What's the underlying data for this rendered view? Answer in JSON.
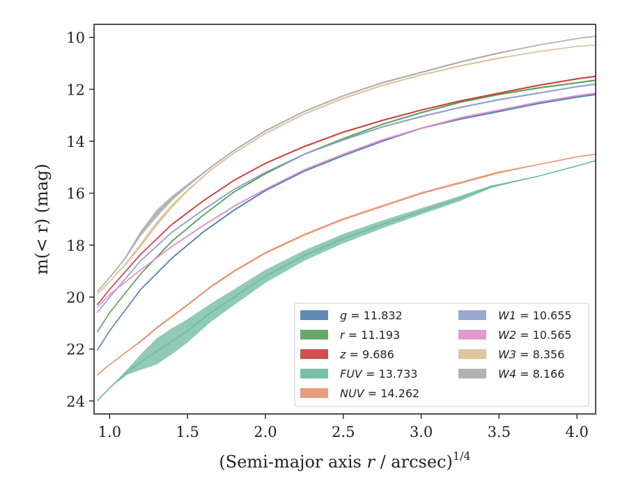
{
  "chart_data": {
    "type": "line",
    "xlabel": "(Semi-major axis r / arcsec)",
    "xlabel_var": "r",
    "xlabel_exp": "1/4",
    "ylabel": "m(< r) (mag)",
    "xlim": [
      0.9,
      4.12
    ],
    "ylim": [
      24.5,
      9.5
    ],
    "y_inverted": true,
    "x_ticks": [
      "1.0",
      "1.5",
      "2.0",
      "2.5",
      "3.0",
      "3.5",
      "4.0"
    ],
    "y_ticks": [
      "10",
      "12",
      "14",
      "16",
      "18",
      "20",
      "22",
      "24"
    ],
    "legend_position": "lower-right",
    "legend_columns": 2,
    "series": [
      {
        "name": "g = 11.832",
        "label": "g",
        "value": "11.832",
        "color": "#4c7fad",
        "x": [
          0.92,
          1.0,
          1.2,
          1.4,
          1.6,
          1.8,
          2.0,
          2.25,
          2.5,
          2.75,
          3.0,
          3.25,
          3.5,
          3.75,
          4.0,
          4.12
        ],
        "y": [
          22.05,
          21.3,
          19.7,
          18.5,
          17.5,
          16.65,
          15.9,
          15.15,
          14.55,
          14.0,
          13.5,
          13.15,
          12.85,
          12.55,
          12.3,
          12.2
        ],
        "band": [
          0.0,
          0.0,
          0.02,
          0.03,
          0.03,
          0.03,
          0.03,
          0.03,
          0.03,
          0.03,
          0.03,
          0.03,
          0.03,
          0.03,
          0.03,
          0.03
        ]
      },
      {
        "name": "r = 11.193",
        "label": "r",
        "value": "11.193",
        "color": "#55a055",
        "x": [
          0.92,
          1.0,
          1.2,
          1.4,
          1.6,
          1.8,
          2.0,
          2.25,
          2.5,
          2.75,
          3.0,
          3.25,
          3.5,
          3.75,
          4.0,
          4.12
        ],
        "y": [
          21.35,
          20.6,
          19.1,
          17.85,
          16.85,
          15.95,
          15.25,
          14.5,
          13.9,
          13.35,
          12.9,
          12.5,
          12.2,
          11.95,
          11.75,
          11.65
        ],
        "band": [
          0.0,
          0.0,
          0.02,
          0.03,
          0.03,
          0.03,
          0.03,
          0.03,
          0.03,
          0.03,
          0.03,
          0.03,
          0.03,
          0.03,
          0.03,
          0.03
        ]
      },
      {
        "name": "z = 9.686",
        "label": "z",
        "value": "9.686",
        "color": "#cc3c3c",
        "x": [
          0.92,
          1.0,
          1.2,
          1.4,
          1.6,
          1.8,
          2.0,
          2.25,
          2.5,
          2.75,
          3.0,
          3.25,
          3.5,
          3.75,
          4.0,
          4.12
        ],
        "y": [
          20.3,
          19.7,
          18.35,
          17.2,
          16.3,
          15.5,
          14.85,
          14.2,
          13.65,
          13.2,
          12.8,
          12.45,
          12.15,
          11.85,
          11.6,
          11.5
        ],
        "band": [
          0.0,
          0.0,
          0.02,
          0.03,
          0.03,
          0.03,
          0.03,
          0.03,
          0.03,
          0.03,
          0.03,
          0.03,
          0.03,
          0.03,
          0.03,
          0.03
        ]
      },
      {
        "name": "FUV = 13.733",
        "label": "FUV",
        "value": "13.733",
        "color": "#6cb89f",
        "x": [
          0.92,
          1.0,
          1.11,
          1.2,
          1.3,
          1.4,
          1.5,
          1.65,
          1.8,
          2.0,
          2.25,
          2.5,
          2.75,
          3.0,
          3.25,
          3.45,
          3.75,
          4.0,
          4.12
        ],
        "y": [
          24.0,
          23.5,
          22.9,
          22.5,
          22.1,
          21.7,
          21.3,
          20.6,
          20.0,
          19.2,
          18.4,
          17.75,
          17.2,
          16.7,
          16.2,
          15.75,
          15.35,
          14.95,
          14.75
        ],
        "band": [
          0.0,
          0.0,
          0.1,
          0.3,
          0.5,
          0.5,
          0.45,
          0.35,
          0.3,
          0.25,
          0.2,
          0.18,
          0.15,
          0.12,
          0.1,
          0.05,
          0.0,
          0.0,
          0.0
        ]
      },
      {
        "name": "NUV = 14.262",
        "label": "NUV",
        "value": "14.262",
        "color": "#e8906e",
        "x": [
          0.92,
          1.0,
          1.11,
          1.2,
          1.3,
          1.4,
          1.5,
          1.65,
          1.8,
          2.0,
          2.25,
          2.5,
          2.75,
          3.0,
          3.25,
          3.5,
          3.75,
          4.0,
          4.12
        ],
        "y": [
          23.0,
          22.6,
          22.1,
          21.7,
          21.2,
          20.75,
          20.3,
          19.6,
          19.0,
          18.3,
          17.6,
          17.0,
          16.5,
          16.0,
          15.6,
          15.2,
          14.9,
          14.6,
          14.5
        ],
        "band": [
          0.0,
          0.0,
          0.0,
          0.04,
          0.04,
          0.04,
          0.04,
          0.04,
          0.04,
          0.04,
          0.04,
          0.04,
          0.04,
          0.04,
          0.04,
          0.04,
          0.0,
          0.0,
          0.0
        ]
      },
      {
        "name": "W1 = 10.655",
        "label": "W1",
        "value": "10.655",
        "color": "#8e9ec6",
        "x": [
          0.92,
          1.0,
          1.2,
          1.4,
          1.6,
          1.8,
          2.0,
          2.25,
          2.5,
          2.75,
          3.0,
          3.25,
          3.5,
          3.75,
          4.0,
          4.12
        ],
        "y": [
          20.6,
          20.0,
          18.6,
          17.5,
          16.65,
          15.85,
          15.2,
          14.5,
          13.95,
          13.45,
          13.05,
          12.7,
          12.4,
          12.15,
          11.9,
          11.8
        ],
        "band": [
          0.0,
          0.0,
          0.02,
          0.03,
          0.03,
          0.03,
          0.03,
          0.03,
          0.03,
          0.03,
          0.03,
          0.03,
          0.03,
          0.03,
          0.03,
          0.03
        ]
      },
      {
        "name": "W2 = 10.565",
        "label": "W2",
        "value": "10.565",
        "color": "#df8fc8",
        "x": [
          0.92,
          1.0,
          1.2,
          1.4,
          1.6,
          1.8,
          2.0,
          2.25,
          2.5,
          2.75,
          3.0,
          3.25,
          3.5,
          3.75,
          4.0,
          4.12
        ],
        "y": [
          20.4,
          19.9,
          18.95,
          18.05,
          17.25,
          16.5,
          15.85,
          15.1,
          14.5,
          13.95,
          13.5,
          13.1,
          12.8,
          12.5,
          12.25,
          12.15
        ],
        "band": [
          0.0,
          0.0,
          0.02,
          0.03,
          0.03,
          0.03,
          0.03,
          0.03,
          0.03,
          0.03,
          0.03,
          0.03,
          0.03,
          0.03,
          0.03,
          0.03
        ]
      },
      {
        "name": "W3 = 8.356",
        "label": "W3",
        "value": "8.356",
        "color": "#dcc094",
        "x": [
          0.92,
          1.0,
          1.1,
          1.2,
          1.3,
          1.4,
          1.5,
          1.65,
          1.8,
          2.0,
          2.25,
          2.5,
          2.75,
          3.0,
          3.25,
          3.5,
          3.75,
          4.0,
          4.12
        ],
        "y": [
          19.9,
          19.4,
          18.75,
          18.0,
          17.2,
          16.5,
          15.9,
          15.1,
          14.45,
          13.7,
          12.95,
          12.35,
          11.85,
          11.45,
          11.1,
          10.8,
          10.55,
          10.35,
          10.3
        ],
        "band": [
          0.0,
          0.0,
          0.05,
          0.08,
          0.1,
          0.08,
          0.05,
          0.03,
          0.03,
          0.03,
          0.03,
          0.03,
          0.03,
          0.03,
          0.03,
          0.03,
          0.0,
          0.0,
          0.0
        ]
      },
      {
        "name": "W4 = 8.166",
        "label": "W4",
        "value": "8.166",
        "color": "#aaaaaa",
        "x": [
          0.92,
          1.0,
          1.1,
          1.2,
          1.3,
          1.4,
          1.5,
          1.65,
          1.8,
          2.0,
          2.25,
          2.5,
          2.75,
          3.0,
          3.25,
          3.5,
          3.75,
          4.0,
          4.12
        ],
        "y": [
          19.8,
          19.25,
          18.5,
          17.55,
          16.8,
          16.2,
          15.7,
          15.0,
          14.35,
          13.6,
          12.85,
          12.25,
          11.75,
          11.35,
          10.95,
          10.6,
          10.3,
          10.05,
          9.95
        ],
        "band": [
          0.0,
          0.0,
          0.05,
          0.1,
          0.15,
          0.1,
          0.06,
          0.03,
          0.03,
          0.03,
          0.03,
          0.03,
          0.03,
          0.03,
          0.03,
          0.03,
          0.0,
          0.0,
          0.0
        ]
      }
    ]
  }
}
